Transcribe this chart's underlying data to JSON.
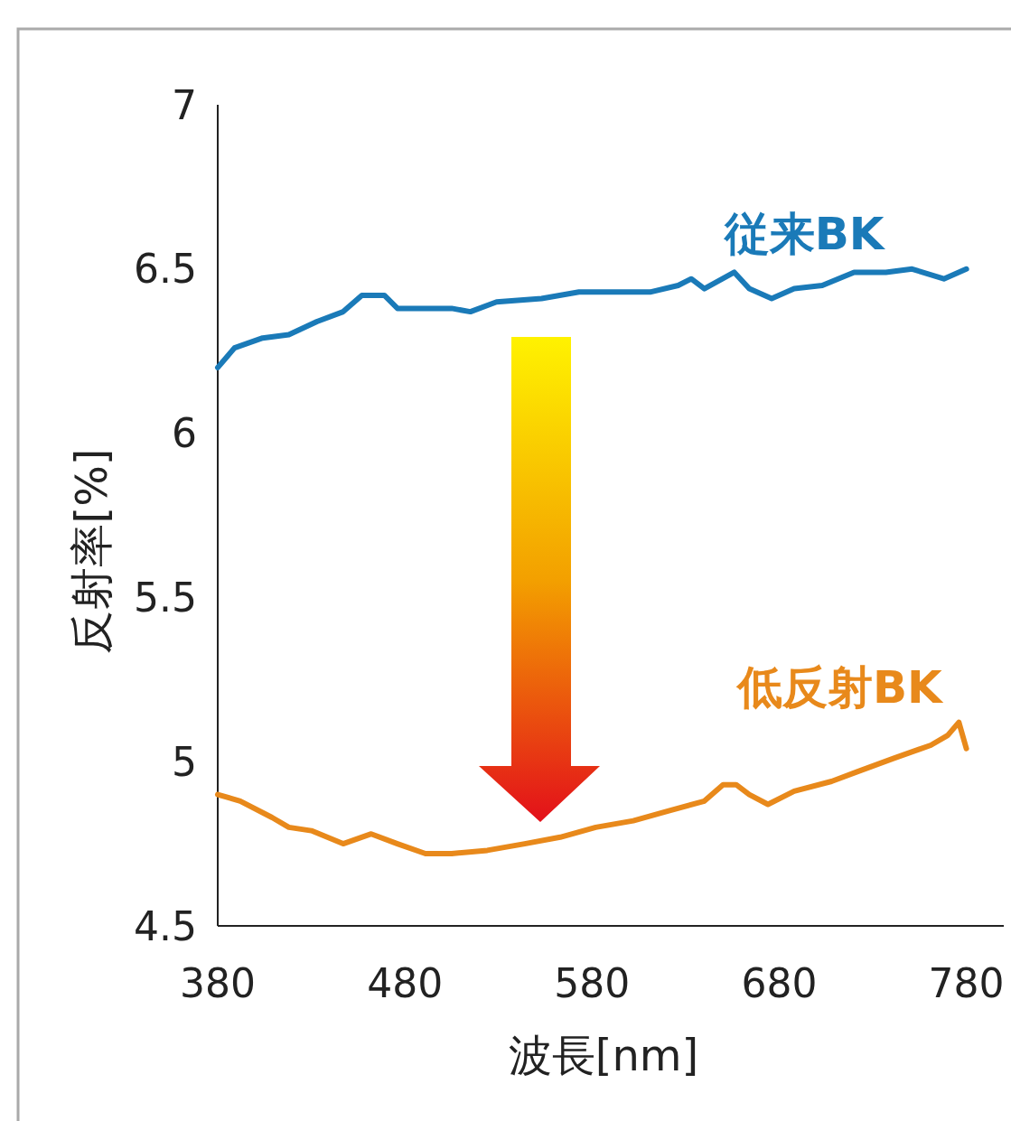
{
  "chart_data": {
    "type": "line",
    "xlabel": "波長[nm]",
    "ylabel": "反射率[%]",
    "xlim": [
      380,
      800
    ],
    "ylim": [
      4.5,
      7
    ],
    "xticks": [
      380,
      480,
      580,
      680,
      780
    ],
    "yticks": [
      4.5,
      5,
      5.5,
      6,
      6.5,
      7
    ],
    "series": [
      {
        "name": "従来BK",
        "color": "#1a7ab8",
        "x": [
          380,
          389,
          404,
          418,
          433,
          447,
          457,
          469,
          476,
          491,
          505,
          515,
          529,
          553,
          573,
          592,
          611,
          626,
          633,
          640,
          656,
          664,
          676,
          688,
          703,
          720,
          737,
          751,
          768,
          780
        ],
        "values": [
          6.2,
          6.26,
          6.29,
          6.3,
          6.34,
          6.37,
          6.42,
          6.42,
          6.38,
          6.38,
          6.38,
          6.37,
          6.4,
          6.41,
          6.43,
          6.43,
          6.43,
          6.45,
          6.47,
          6.44,
          6.49,
          6.44,
          6.41,
          6.44,
          6.45,
          6.49,
          6.49,
          6.5,
          6.47,
          6.5
        ]
      },
      {
        "name": "低反射BK",
        "color": "#e8891b",
        "x": [
          380,
          392,
          409,
          418,
          430,
          447,
          462,
          476,
          491,
          505,
          524,
          544,
          563,
          582,
          602,
          621,
          640,
          650,
          657,
          664,
          674,
          688,
          708,
          722,
          741,
          761,
          770,
          776,
          780
        ],
        "values": [
          4.9,
          4.88,
          4.83,
          4.8,
          4.79,
          4.75,
          4.78,
          4.75,
          4.72,
          4.72,
          4.73,
          4.75,
          4.77,
          4.8,
          4.82,
          4.85,
          4.88,
          4.93,
          4.93,
          4.9,
          4.87,
          4.91,
          4.94,
          4.97,
          5.01,
          5.05,
          5.08,
          5.12,
          5.04
        ]
      }
    ]
  }
}
